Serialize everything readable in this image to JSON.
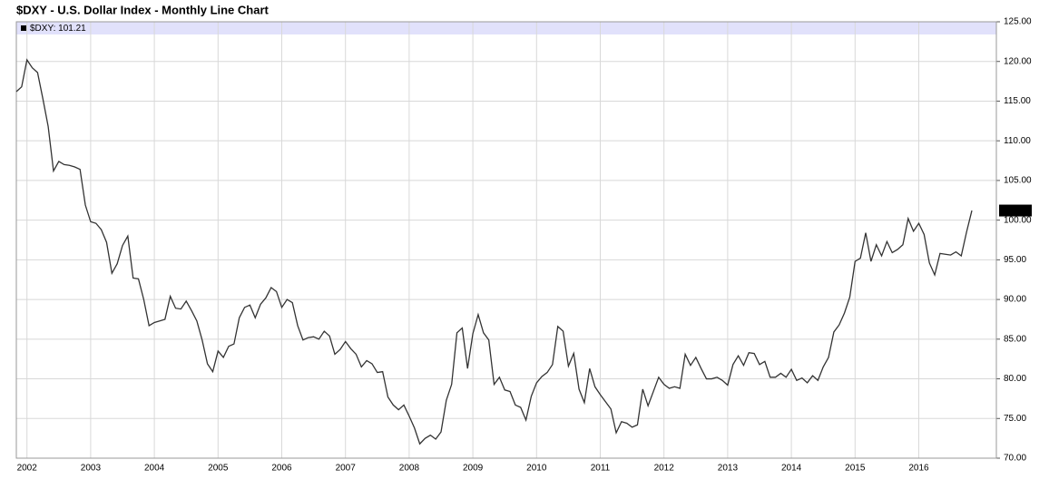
{
  "chart_data": {
    "type": "line",
    "title": "$DXY - U.S. Dollar Index - Monthly Line Chart",
    "categories": [
      null,
      null,
      "2002",
      null,
      null,
      null,
      null,
      null,
      null,
      null,
      null,
      null,
      null,
      null,
      "2003",
      null,
      null,
      null,
      null,
      null,
      null,
      null,
      null,
      null,
      null,
      null,
      "2004",
      null,
      null,
      null,
      null,
      null,
      null,
      null,
      null,
      null,
      null,
      null,
      "2005",
      null,
      null,
      null,
      null,
      null,
      null,
      null,
      null,
      null,
      null,
      null,
      "2006",
      null,
      null,
      null,
      null,
      null,
      null,
      null,
      null,
      null,
      null,
      null,
      "2007",
      null,
      null,
      null,
      null,
      null,
      null,
      null,
      null,
      null,
      null,
      null,
      "2008",
      null,
      null,
      null,
      null,
      null,
      null,
      null,
      null,
      null,
      null,
      null,
      "2009",
      null,
      null,
      null,
      null,
      null,
      null,
      null,
      null,
      null,
      null,
      null,
      "2010",
      null,
      null,
      null,
      null,
      null,
      null,
      null,
      null,
      null,
      null,
      null,
      "2011",
      null,
      null,
      null,
      null,
      null,
      null,
      null,
      null,
      null,
      null,
      null,
      "2012",
      null,
      null,
      null,
      null,
      null,
      null,
      null,
      null,
      null,
      null,
      null,
      "2013",
      null,
      null,
      null,
      null,
      null,
      null,
      null,
      null,
      null,
      null,
      null,
      "2014",
      null,
      null,
      null,
      null,
      null,
      null,
      null,
      null,
      null,
      null,
      null,
      "2015",
      null,
      null,
      null,
      null,
      null,
      null,
      null,
      null,
      null,
      null,
      null,
      "2016",
      null,
      null,
      null,
      null,
      null,
      null,
      null,
      null,
      null,
      null
    ],
    "series": [
      {
        "name": "$DXY: 101.21",
        "color": "#333333",
        "values": [
          116.2,
          116.8,
          120.2,
          119.2,
          118.6,
          115.3,
          111.8,
          106.2,
          107.4,
          107.0,
          106.9,
          106.7,
          106.4,
          101.9,
          99.8,
          99.6,
          98.8,
          97.2,
          93.3,
          94.5,
          96.8,
          98.0,
          92.7,
          92.6,
          90.0,
          86.7,
          87.1,
          87.3,
          87.5,
          90.4,
          88.9,
          88.8,
          89.8,
          88.6,
          87.3,
          84.9,
          81.9,
          80.9,
          83.5,
          82.7,
          84.1,
          84.4,
          87.7,
          89.0,
          89.3,
          87.7,
          89.4,
          90.2,
          91.5,
          91.0,
          89.0,
          90.0,
          89.6,
          86.7,
          84.9,
          85.2,
          85.3,
          85.0,
          86.0,
          85.4,
          83.1,
          83.7,
          84.7,
          83.8,
          83.1,
          81.5,
          82.3,
          81.9,
          80.8,
          80.9,
          77.7,
          76.7,
          76.1,
          76.7,
          75.3,
          73.8,
          71.8,
          72.5,
          72.9,
          72.4,
          73.3,
          77.3,
          79.3,
          85.8,
          86.4,
          81.3,
          85.7,
          88.1,
          85.8,
          84.9,
          79.3,
          80.2,
          78.6,
          78.4,
          76.7,
          76.4,
          74.8,
          77.8,
          79.5,
          80.3,
          80.8,
          81.8,
          86.6,
          86.0,
          81.6,
          83.2,
          78.7,
          77.0,
          81.3,
          79.0,
          78.0,
          77.1,
          76.2,
          73.2,
          74.6,
          74.4,
          73.9,
          74.2,
          78.7,
          76.6,
          78.4,
          80.2,
          79.3,
          78.8,
          79.0,
          78.8,
          83.1,
          81.7,
          82.7,
          81.3,
          80.0,
          80.0,
          80.2,
          79.8,
          79.2,
          81.8,
          82.9,
          81.7,
          83.3,
          83.2,
          81.8,
          82.2,
          80.2,
          80.2,
          80.7,
          80.2,
          81.2,
          79.8,
          80.1,
          79.5,
          80.4,
          79.8,
          81.5,
          82.7,
          85.9,
          86.8,
          88.3,
          90.3,
          94.8,
          95.2,
          98.4,
          94.8,
          96.9,
          95.5,
          97.3,
          95.9,
          96.3,
          96.9,
          100.2,
          98.6,
          99.6,
          98.2,
          94.6,
          93.1,
          95.8,
          95.7,
          95.6,
          96.0,
          95.5,
          98.5,
          101.21
        ]
      }
    ],
    "ylim": [
      70,
      125
    ],
    "yticks": [
      {
        "value": 70,
        "label": "70.00"
      },
      {
        "value": 75,
        "label": "75.00"
      },
      {
        "value": 80,
        "label": "80.00"
      },
      {
        "value": 85,
        "label": "85.00"
      },
      {
        "value": 90,
        "label": "90.00"
      },
      {
        "value": 95,
        "label": "95.00"
      },
      {
        "value": 100,
        "label": "100.00"
      },
      {
        "value": 105,
        "label": "105.00"
      },
      {
        "value": 110,
        "label": "110.00"
      },
      {
        "value": 115,
        "label": "115.00"
      },
      {
        "value": 120,
        "label": "120.00"
      },
      {
        "value": 125,
        "label": "125.00"
      }
    ],
    "grid": true
  }
}
